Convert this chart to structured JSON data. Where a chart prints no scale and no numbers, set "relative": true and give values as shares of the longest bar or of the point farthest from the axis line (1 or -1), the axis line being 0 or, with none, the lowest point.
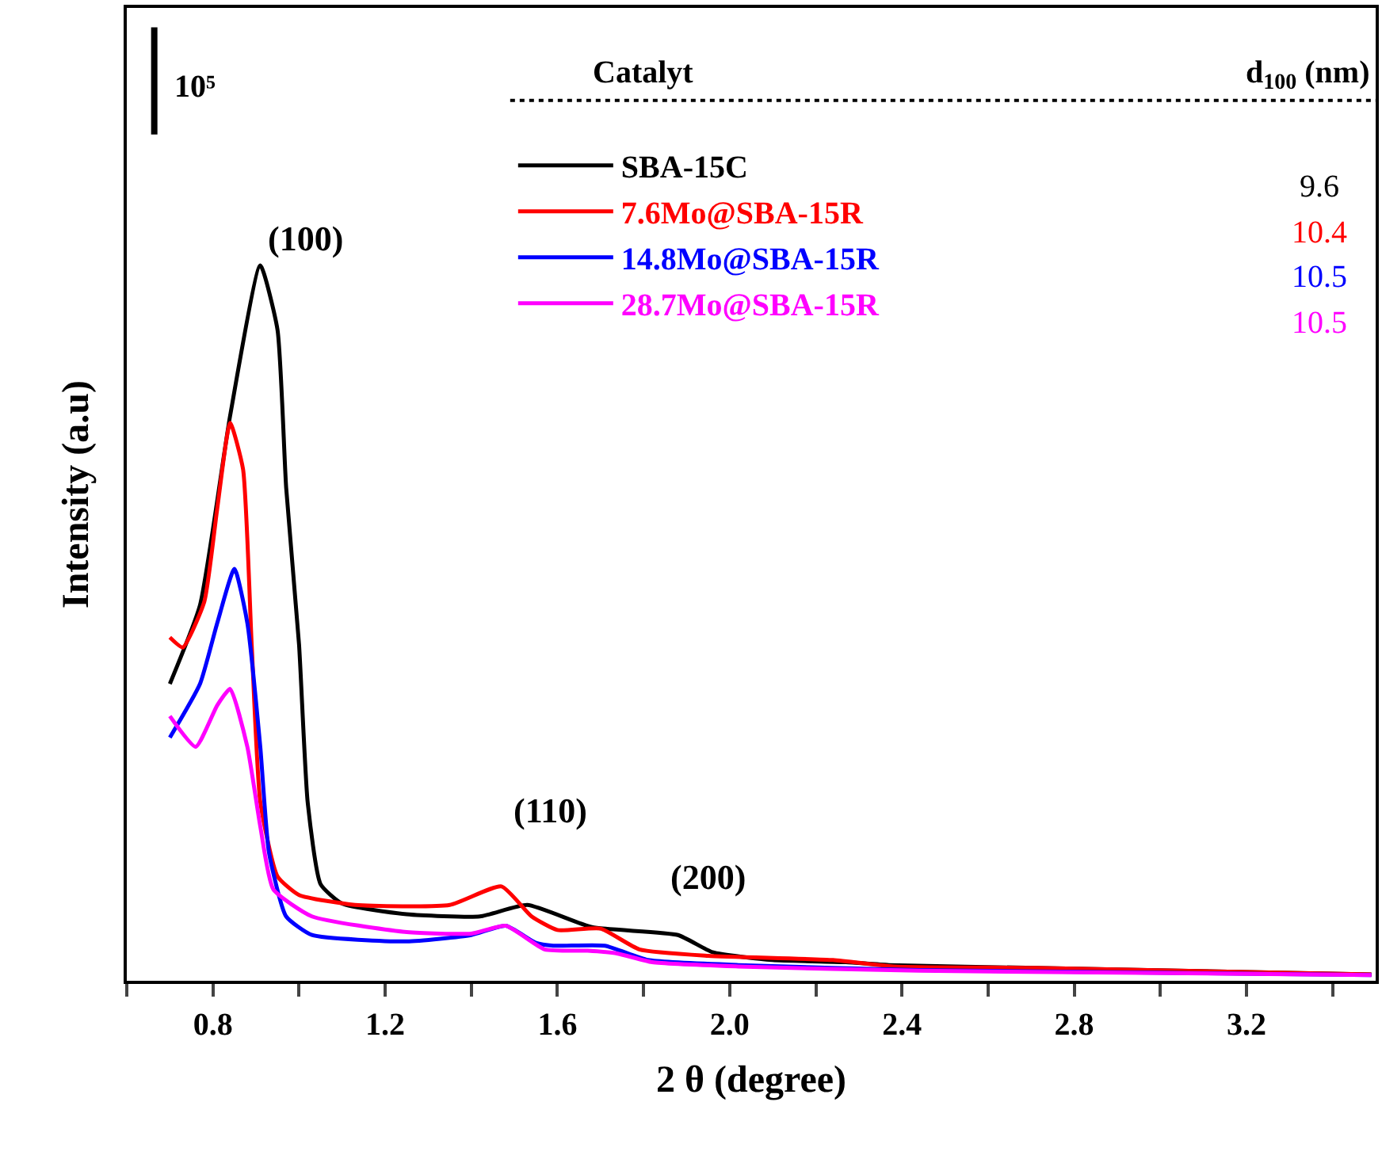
{
  "chart_data": {
    "type": "line",
    "relative": true,
    "xlabel": "2 θ (degree)",
    "ylabel": "Intensity (a.u)",
    "xlim": [
      0.6,
      3.5
    ],
    "xticks": [
      {
        "value": 0.6,
        "label": null
      },
      0.8,
      {
        "value": 1.0,
        "label": null
      },
      1.2,
      {
        "value": 1.4,
        "label": null
      },
      1.6,
      {
        "value": 1.8,
        "label": null
      },
      {
        "value": 2.0,
        "label": "2.0"
      },
      {
        "value": 2.2,
        "label": null
      },
      2.4,
      {
        "value": 2.6,
        "label": null
      },
      2.8,
      {
        "value": 3.0,
        "label": null
      },
      3.2,
      {
        "value": 3.4,
        "label": null
      }
    ],
    "legend": "top right",
    "marker": "none",
    "line_style": "solid",
    "legend_title": "Catalyt",
    "series": [
      {
        "name": "SBA-15C",
        "color": "#000000",
        "x": [
          0.7,
          0.77,
          0.84,
          0.91,
          0.95,
          0.97,
          1.0,
          1.02,
          1.05,
          1.1,
          1.25,
          1.42,
          1.53,
          1.68,
          1.88,
          1.96,
          2.1,
          2.27,
          2.37,
          2.71,
          3.49
        ],
        "values": [
          0.415,
          0.525,
          0.79,
          1.0,
          0.91,
          0.69,
          0.47,
          0.25,
          0.135,
          0.108,
          0.093,
          0.09,
          0.106,
          0.075,
          0.064,
          0.04,
          0.029,
          0.026,
          0.022,
          0.018,
          0.009
        ]
      },
      {
        "name": "7.6Mo@SBA-15R",
        "color": "#ff0000",
        "x": [
          0.7,
          0.73,
          0.78,
          0.81,
          0.84,
          0.87,
          0.89,
          0.91,
          0.95,
          1.0,
          1.13,
          1.35,
          1.47,
          1.54,
          1.6,
          1.7,
          1.79,
          1.95,
          2.24,
          2.38,
          2.71,
          3.49
        ],
        "values": [
          0.48,
          0.466,
          0.53,
          0.66,
          0.78,
          0.715,
          0.47,
          0.25,
          0.146,
          0.12,
          0.106,
          0.106,
          0.132,
          0.09,
          0.071,
          0.073,
          0.044,
          0.035,
          0.029,
          0.02,
          0.018,
          0.009
        ]
      },
      {
        "name": "14.8Mo@SBA-15R",
        "color": "#0000ff",
        "x": [
          0.7,
          0.77,
          0.81,
          0.85,
          0.88,
          0.91,
          0.93,
          0.97,
          1.03,
          1.25,
          1.4,
          1.48,
          1.55,
          1.59,
          1.71,
          1.81,
          2.02,
          2.44,
          3.49
        ],
        "values": [
          0.34,
          0.415,
          0.5,
          0.576,
          0.5,
          0.327,
          0.18,
          0.09,
          0.064,
          0.055,
          0.064,
          0.077,
          0.053,
          0.049,
          0.049,
          0.029,
          0.022,
          0.015,
          0.008
        ]
      },
      {
        "name": "28.7Mo@SBA-15R",
        "color": "#ff00ff",
        "x": [
          0.7,
          0.76,
          0.81,
          0.84,
          0.88,
          0.91,
          0.94,
          1.03,
          1.25,
          1.4,
          1.48,
          1.57,
          1.67,
          1.74,
          1.82,
          2.02,
          2.44,
          3.49
        ],
        "values": [
          0.37,
          0.327,
          0.385,
          0.408,
          0.327,
          0.216,
          0.128,
          0.09,
          0.068,
          0.066,
          0.077,
          0.044,
          0.042,
          0.038,
          0.026,
          0.02,
          0.014,
          0.008
        ]
      }
    ],
    "annotations": [
      "(100)",
      "(110)",
      "(200)",
      "10⁵",
      "d$_{100}$ (nm)",
      "9.6",
      "10.4",
      "10.5",
      "10.5"
    ]
  }
}
